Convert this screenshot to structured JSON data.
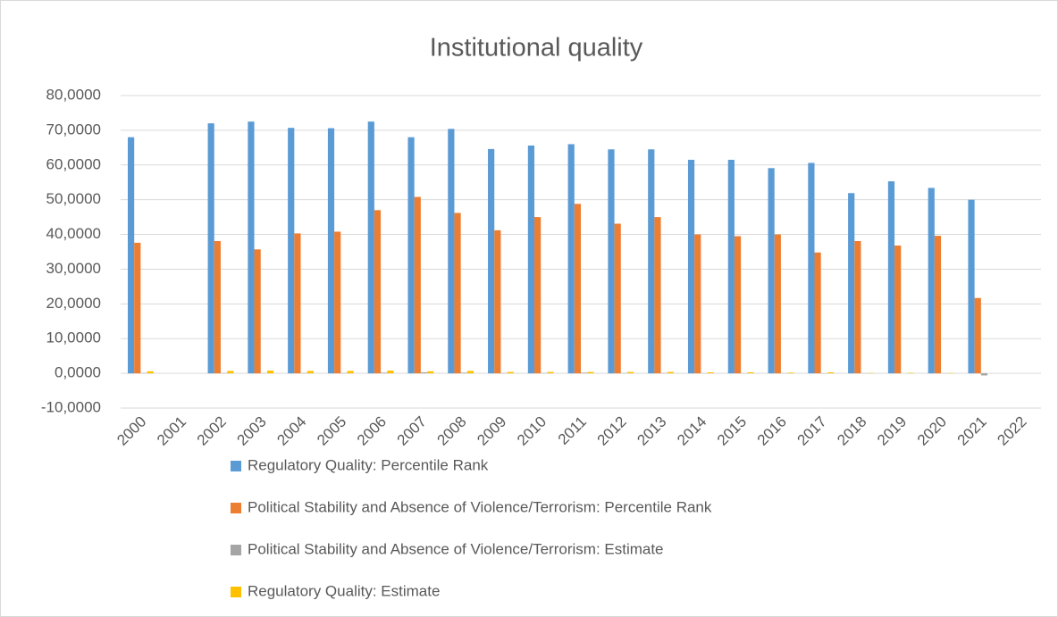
{
  "chart_data": {
    "type": "bar",
    "title": "Institutional quality",
    "categories": [
      "2000",
      "2001",
      "2002",
      "2003",
      "2004",
      "2005",
      "2006",
      "2007",
      "2008",
      "2009",
      "2010",
      "2011",
      "2012",
      "2013",
      "2014",
      "2015",
      "2016",
      "2017",
      "2018",
      "2019",
      "2020",
      "2021",
      "2022"
    ],
    "series": [
      {
        "name": "Regulatory Quality: Percentile Rank",
        "color": "#5b9bd5",
        "values": [
          68,
          null,
          72,
          72.5,
          70.7,
          70.6,
          72.5,
          68,
          70.4,
          64.6,
          65.6,
          66,
          64.5,
          64.5,
          61.5,
          61.5,
          59.1,
          60.6,
          51.9,
          55.3,
          53.4,
          50,
          null
        ]
      },
      {
        "name": "Political Stability and Absence of Violence/Terrorism: Percentile Rank",
        "color": "#ed7d31",
        "values": [
          37.6,
          null,
          38.1,
          35.7,
          40.3,
          40.8,
          47,
          50.8,
          46.2,
          41.2,
          45,
          48.8,
          43.1,
          45,
          40,
          39.5,
          40,
          34.8,
          38.1,
          36.8,
          39.6,
          21.7,
          null
        ]
      },
      {
        "name": "Political Stability and Absence of Violence/Terrorism: Estimate",
        "color": "#a5a5a5",
        "values": [
          0.1,
          null,
          0.1,
          0.05,
          0.1,
          0.1,
          0.2,
          0.3,
          0.2,
          0.1,
          0.1,
          0.2,
          0.1,
          0.1,
          0.05,
          0.05,
          0.05,
          -0.05,
          0.05,
          0.0,
          0.05,
          -0.6,
          null
        ]
      },
      {
        "name": "Regulatory Quality: Estimate",
        "color": "#ffc000",
        "values": [
          0.6,
          null,
          0.7,
          0.8,
          0.7,
          0.7,
          0.8,
          0.6,
          0.7,
          0.4,
          0.4,
          0.4,
          0.4,
          0.4,
          0.3,
          0.3,
          0.2,
          0.3,
          0.1,
          0.15,
          0.1,
          0.0,
          null
        ]
      }
    ],
    "ylim": [
      -10,
      80
    ],
    "yticks": [
      {
        "value": -10,
        "label": "-10,0000"
      },
      {
        "value": 0,
        "label": "0,0000"
      },
      {
        "value": 10,
        "label": "10,0000"
      },
      {
        "value": 20,
        "label": "20,0000"
      },
      {
        "value": 30,
        "label": "30,0000"
      },
      {
        "value": 40,
        "label": "40,0000"
      },
      {
        "value": 50,
        "label": "50,0000"
      },
      {
        "value": 60,
        "label": "60,0000"
      },
      {
        "value": 70,
        "label": "70,0000"
      },
      {
        "value": 80,
        "label": "80,0000"
      }
    ],
    "grid": true,
    "legend": "bottom"
  }
}
